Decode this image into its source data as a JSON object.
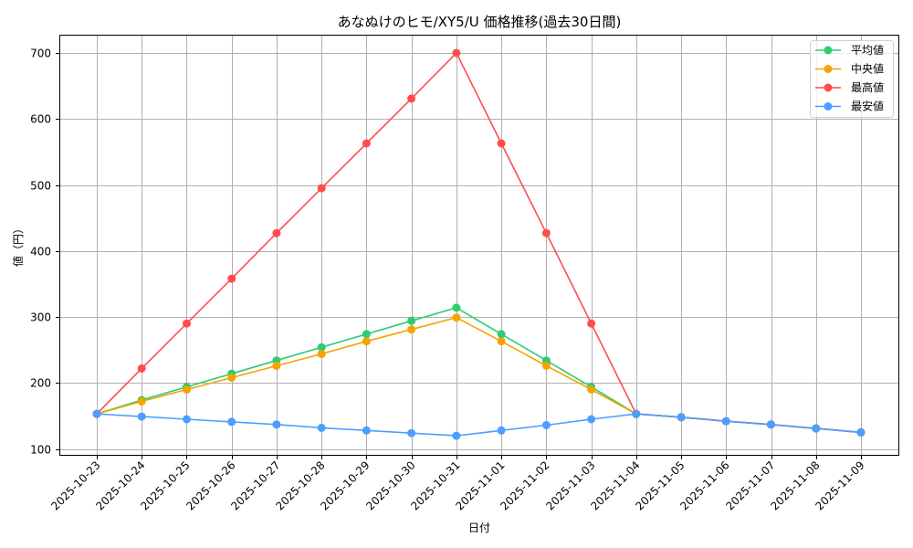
{
  "chart_data": {
    "type": "line",
    "title": "あなぬけのヒモ/XY5/U 価格推移(過去30日間)",
    "xlabel": "日付",
    "ylabel": "値（円）",
    "ylim": [
      90,
      730
    ],
    "yticks": [
      100,
      200,
      300,
      400,
      500,
      600,
      700
    ],
    "grid": true,
    "legend_position": "upper right",
    "categories": [
      "2025-10-23",
      "2025-10-24",
      "2025-10-25",
      "2025-10-26",
      "2025-10-27",
      "2025-10-28",
      "2025-10-29",
      "2025-10-30",
      "2025-10-31",
      "2025-11-01",
      "2025-11-02",
      "2025-11-03",
      "2025-11-04",
      "2025-11-05",
      "2025-11-06",
      "2025-11-07",
      "2025-11-08",
      "2025-11-09"
    ],
    "series": [
      {
        "name": "平均値",
        "color": "#2ecc71",
        "values": [
          153,
          174,
          194,
          214,
          234,
          254,
          274,
          294,
          314,
          274,
          234,
          194,
          153,
          148,
          142,
          137,
          131,
          125
        ]
      },
      {
        "name": "中央値",
        "color": "#f5a300",
        "values": [
          153,
          172,
          190,
          208,
          226,
          244,
          263,
          281,
          299,
          263,
          226,
          190,
          153,
          148,
          142,
          137,
          131,
          125
        ]
      },
      {
        "name": "最高値",
        "color": "#ff4d4d",
        "values": [
          153,
          222,
          290,
          358,
          427,
          495,
          563,
          631,
          700,
          563,
          427,
          290,
          153,
          148,
          142,
          137,
          131,
          125
        ]
      },
      {
        "name": "最安値",
        "color": "#4d9eff",
        "values": [
          153,
          149,
          145,
          141,
          137,
          132,
          128,
          124,
          120,
          128,
          136,
          145,
          153,
          148,
          142,
          137,
          131,
          125
        ]
      }
    ]
  }
}
